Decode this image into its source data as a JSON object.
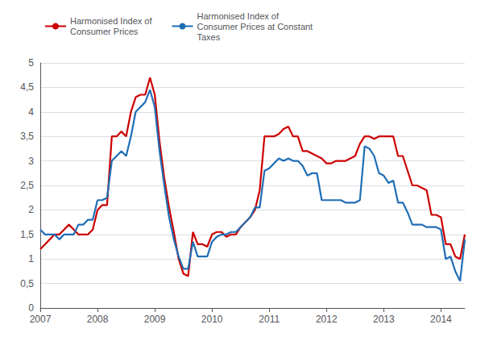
{
  "chart_data": {
    "type": "line",
    "x": [
      2007,
      2007.0833333333333,
      2007.1666666666667,
      2007.25,
      2007.3333333333333,
      2007.4166666666667,
      2007.5,
      2007.5833333333333,
      2007.6666666666667,
      2007.75,
      2007.8333333333333,
      2007.9166666666667,
      2008,
      2008.0833333333333,
      2008.1666666666667,
      2008.25,
      2008.3333333333333,
      2008.4166666666667,
      2008.5,
      2008.5833333333333,
      2008.6666666666667,
      2008.75,
      2008.8333333333333,
      2008.9166666666667,
      2009,
      2009.0833333333333,
      2009.1666666666667,
      2009.25,
      2009.3333333333333,
      2009.4166666666667,
      2009.5,
      2009.5833333333333,
      2009.6666666666667,
      2009.75,
      2009.8333333333333,
      2009.9166666666667,
      2010,
      2010.0833333333333,
      2010.1666666666667,
      2010.25,
      2010.3333333333333,
      2010.4166666666667,
      2010.5,
      2010.5833333333333,
      2010.6666666666667,
      2010.75,
      2010.8333333333333,
      2010.9166666666667,
      2011,
      2011.0833333333333,
      2011.1666666666667,
      2011.25,
      2011.3333333333333,
      2011.4166666666667,
      2011.5,
      2011.5833333333333,
      2011.6666666666667,
      2011.75,
      2011.8333333333333,
      2011.9166666666667,
      2012,
      2012.0833333333333,
      2012.1666666666667,
      2012.25,
      2012.3333333333333,
      2012.4166666666667,
      2012.5,
      2012.5833333333333,
      2012.6666666666667,
      2012.75,
      2012.8333333333333,
      2012.9166666666667,
      2013,
      2013.0833333333333,
      2013.1666666666667,
      2013.25,
      2013.3333333333333,
      2013.4166666666667,
      2013.5,
      2013.5833333333333,
      2013.6666666666667,
      2013.75,
      2013.8333333333333,
      2013.9166666666667,
      2014,
      2014.0833333333333,
      2014.1666666666667,
      2014.25,
      2014.3333333333333,
      2014.4166666666667
    ],
    "series": [
      {
        "name": "Harmonised Index of\nConsumer Prices",
        "color": "#cc0000",
        "values": [
          1.2,
          1.3,
          1.4,
          1.5,
          1.5,
          1.6,
          1.7,
          1.6,
          1.5,
          1.5,
          1.5,
          1.6,
          2.0,
          2.1,
          2.1,
          3.5,
          3.5,
          3.6,
          3.5,
          4.0,
          4.3,
          4.35,
          4.35,
          4.7,
          4.35,
          3.4,
          2.65,
          2.05,
          1.55,
          1.0,
          0.7,
          0.65,
          1.55,
          1.3,
          1.3,
          1.25,
          1.5,
          1.55,
          1.55,
          1.45,
          1.5,
          1.5,
          1.65,
          1.75,
          1.85,
          2.0,
          2.4,
          3.5,
          3.5,
          3.5,
          3.55,
          3.65,
          3.7,
          3.5,
          3.5,
          3.2,
          3.2,
          3.15,
          3.1,
          3.05,
          2.95,
          2.95,
          3.0,
          3.0,
          3.0,
          3.05,
          3.1,
          3.35,
          3.5,
          3.5,
          3.45,
          3.5,
          3.5,
          3.5,
          3.5,
          3.1,
          3.1,
          2.8,
          2.5,
          2.5,
          2.45,
          2.4,
          1.9,
          1.9,
          1.85,
          1.3,
          1.3,
          1.05,
          1.0,
          1.5
        ]
      },
      {
        "name": "Harmonised Index of\nConsumer Prices at Constant\nTaxes",
        "color": "#1f6eb5",
        "values": [
          1.6,
          1.5,
          1.5,
          1.5,
          1.4,
          1.5,
          1.5,
          1.5,
          1.7,
          1.7,
          1.8,
          1.8,
          2.2,
          2.2,
          2.25,
          3.0,
          3.1,
          3.2,
          3.1,
          3.5,
          4.0,
          4.1,
          4.2,
          4.45,
          4.1,
          3.2,
          2.5,
          1.85,
          1.4,
          1.05,
          0.8,
          0.8,
          1.35,
          1.05,
          1.05,
          1.05,
          1.35,
          1.45,
          1.5,
          1.5,
          1.55,
          1.55,
          1.65,
          1.75,
          1.85,
          2.05,
          2.05,
          2.8,
          2.85,
          2.95,
          3.05,
          3.0,
          3.05,
          3.0,
          3.0,
          2.9,
          2.7,
          2.75,
          2.75,
          2.2,
          2.2,
          2.2,
          2.2,
          2.2,
          2.15,
          2.15,
          2.15,
          2.2,
          3.3,
          3.25,
          3.1,
          2.75,
          2.7,
          2.55,
          2.6,
          2.15,
          2.15,
          1.95,
          1.7,
          1.7,
          1.7,
          1.65,
          1.65,
          1.65,
          1.6,
          1.0,
          1.05,
          0.75,
          0.55,
          1.4
        ]
      }
    ],
    "xlim": [
      2007,
      2014.4166666666667
    ],
    "xticks": [
      2007,
      2008,
      2009,
      2010,
      2011,
      2012,
      2013,
      2014
    ],
    "ylim": [
      0,
      5
    ],
    "yticks": [
      0,
      {
        "value": 0.5,
        "label": "0,5"
      },
      1,
      {
        "value": 1.5,
        "label": "1,5"
      },
      2,
      {
        "value": 2.5,
        "label": "2,5"
      },
      3,
      {
        "value": 3.5,
        "label": "3,5"
      },
      4,
      {
        "value": 4.5,
        "label": "4,5"
      },
      5
    ],
    "grid": true,
    "legend": "upper left"
  }
}
